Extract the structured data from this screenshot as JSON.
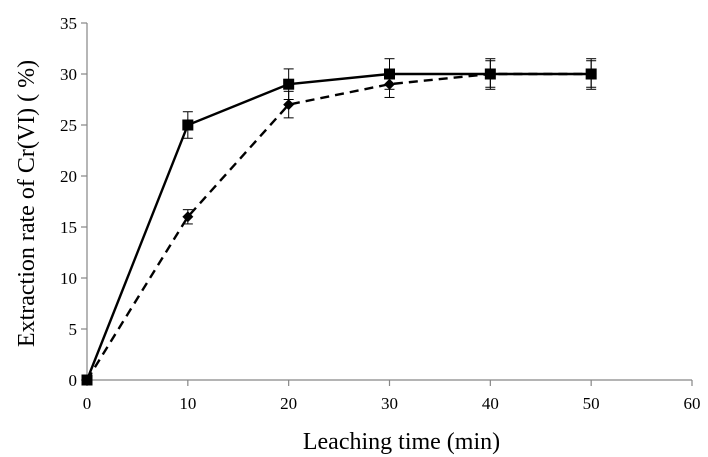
{
  "chart_data": {
    "type": "line",
    "title": "",
    "xlabel": "Leaching time (min)",
    "ylabel": "Extraction rate of Cr(VI) ( %)",
    "xlim": [
      0,
      60
    ],
    "ylim": [
      0,
      35
    ],
    "xticks": [
      0,
      10,
      20,
      30,
      40,
      50,
      60
    ],
    "yticks": [
      0,
      5,
      10,
      15,
      20,
      25,
      30,
      35
    ],
    "grid": false,
    "legend": "none",
    "series": [
      {
        "line_style": "solid",
        "marker": "square",
        "color": "#000000",
        "x": [
          0,
          10,
          20,
          30,
          40,
          50
        ],
        "y": [
          0,
          25,
          29,
          30,
          30,
          30
        ],
        "error": [
          0,
          1.3,
          1.5,
          1.5,
          1.5,
          1.5
        ]
      },
      {
        "line_style": "dashed",
        "marker": "diamond",
        "color": "#000000",
        "x": [
          0,
          10,
          20,
          30,
          40,
          50
        ],
        "y": [
          0,
          16,
          27,
          29,
          30,
          30
        ],
        "error": [
          0,
          0.7,
          1.3,
          1.3,
          1.3,
          1.3
        ]
      }
    ]
  }
}
